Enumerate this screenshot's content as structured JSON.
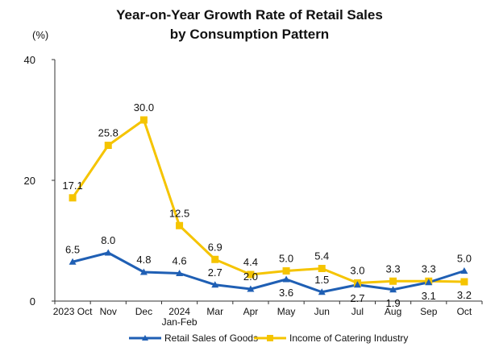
{
  "chart_data": {
    "type": "line",
    "title_line1": "Year-on-Year Growth Rate of Retail Sales",
    "title_line2": "by Consumption Pattern",
    "unit": "(%)",
    "categories": [
      "2023 Oct",
      "Nov",
      "Dec",
      "2024 Jan-Feb",
      "Mar",
      "Apr",
      "May",
      "Jun",
      "Jul",
      "Aug",
      "Sep",
      "Oct"
    ],
    "category_lines": [
      [
        "2023 Oct"
      ],
      [
        "Nov"
      ],
      [
        "Dec"
      ],
      [
        "2024",
        "Jan-Feb"
      ],
      [
        "Mar"
      ],
      [
        "Apr"
      ],
      [
        "May"
      ],
      [
        "Jun"
      ],
      [
        "Jul"
      ],
      [
        "Aug"
      ],
      [
        "Sep"
      ],
      [
        "Oct"
      ]
    ],
    "ylim": [
      0,
      40
    ],
    "yticks": [
      0,
      20,
      40
    ],
    "grid": false,
    "series": [
      {
        "name": "Retail Sales of Goods",
        "color": "#1f5fb4",
        "marker": "triangle",
        "values": [
          6.5,
          8.0,
          4.8,
          4.6,
          2.7,
          2.0,
          3.6,
          1.5,
          2.7,
          1.9,
          3.1,
          5.0
        ],
        "label_pos": [
          "above",
          "above",
          "above",
          "above",
          "above",
          "above",
          "below",
          "above",
          "below",
          "below",
          "below",
          "above"
        ]
      },
      {
        "name": "Income of Catering Industry",
        "color": "#f5c400",
        "marker": "square",
        "values": [
          17.1,
          25.8,
          30.0,
          12.5,
          6.9,
          4.4,
          5.0,
          5.4,
          3.0,
          3.3,
          3.3,
          3.2
        ],
        "label_pos": [
          "above",
          "above",
          "above",
          "above",
          "above",
          "above",
          "above",
          "above",
          "above",
          "above",
          "above",
          "below"
        ]
      }
    ],
    "legend_position": "bottom"
  }
}
